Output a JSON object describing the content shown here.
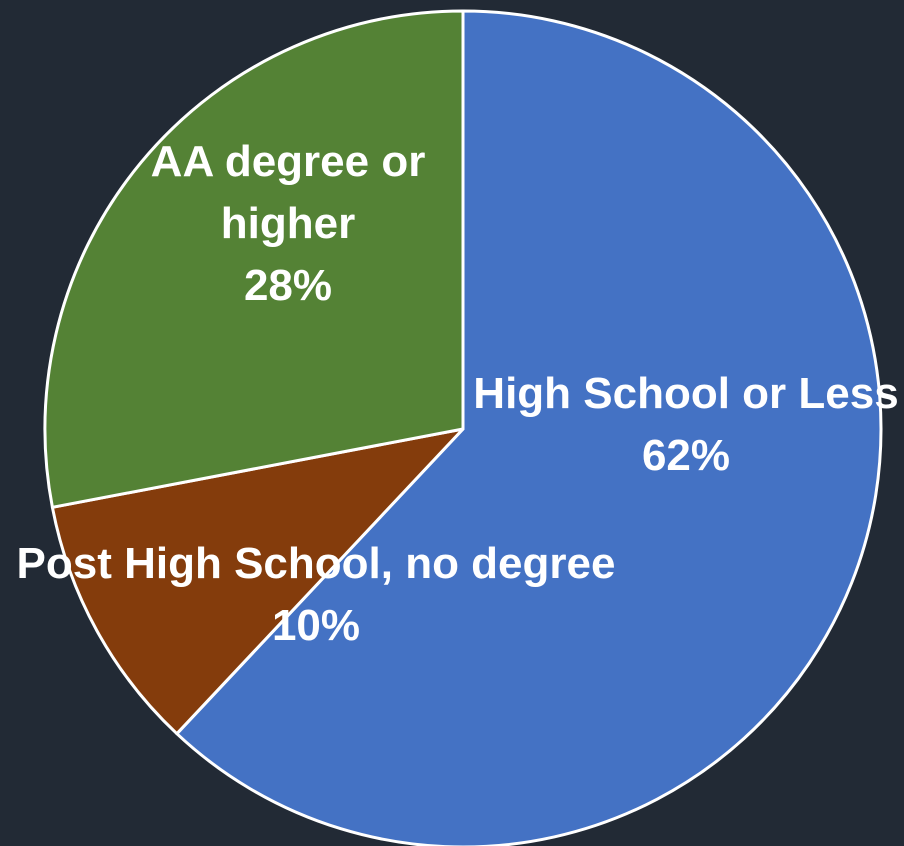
{
  "chart_data": {
    "type": "pie",
    "title": "",
    "start_angle_deg": 0,
    "direction": "clockwise",
    "slices": [
      {
        "name": "High School or Less",
        "label_lines": [
          "High School or Less"
        ],
        "value": 62,
        "value_label": "62%",
        "color": "#4472c4"
      },
      {
        "name": "Post High School, no degree",
        "label_lines": [
          "Post High School, no degree"
        ],
        "value": 10,
        "value_label": "10%",
        "color": "#843c0c"
      },
      {
        "name": "AA degree or higher",
        "label_lines": [
          "AA degree or",
          "higher"
        ],
        "value": 28,
        "value_label": "28%",
        "color": "#548235"
      }
    ],
    "legend": "none"
  }
}
